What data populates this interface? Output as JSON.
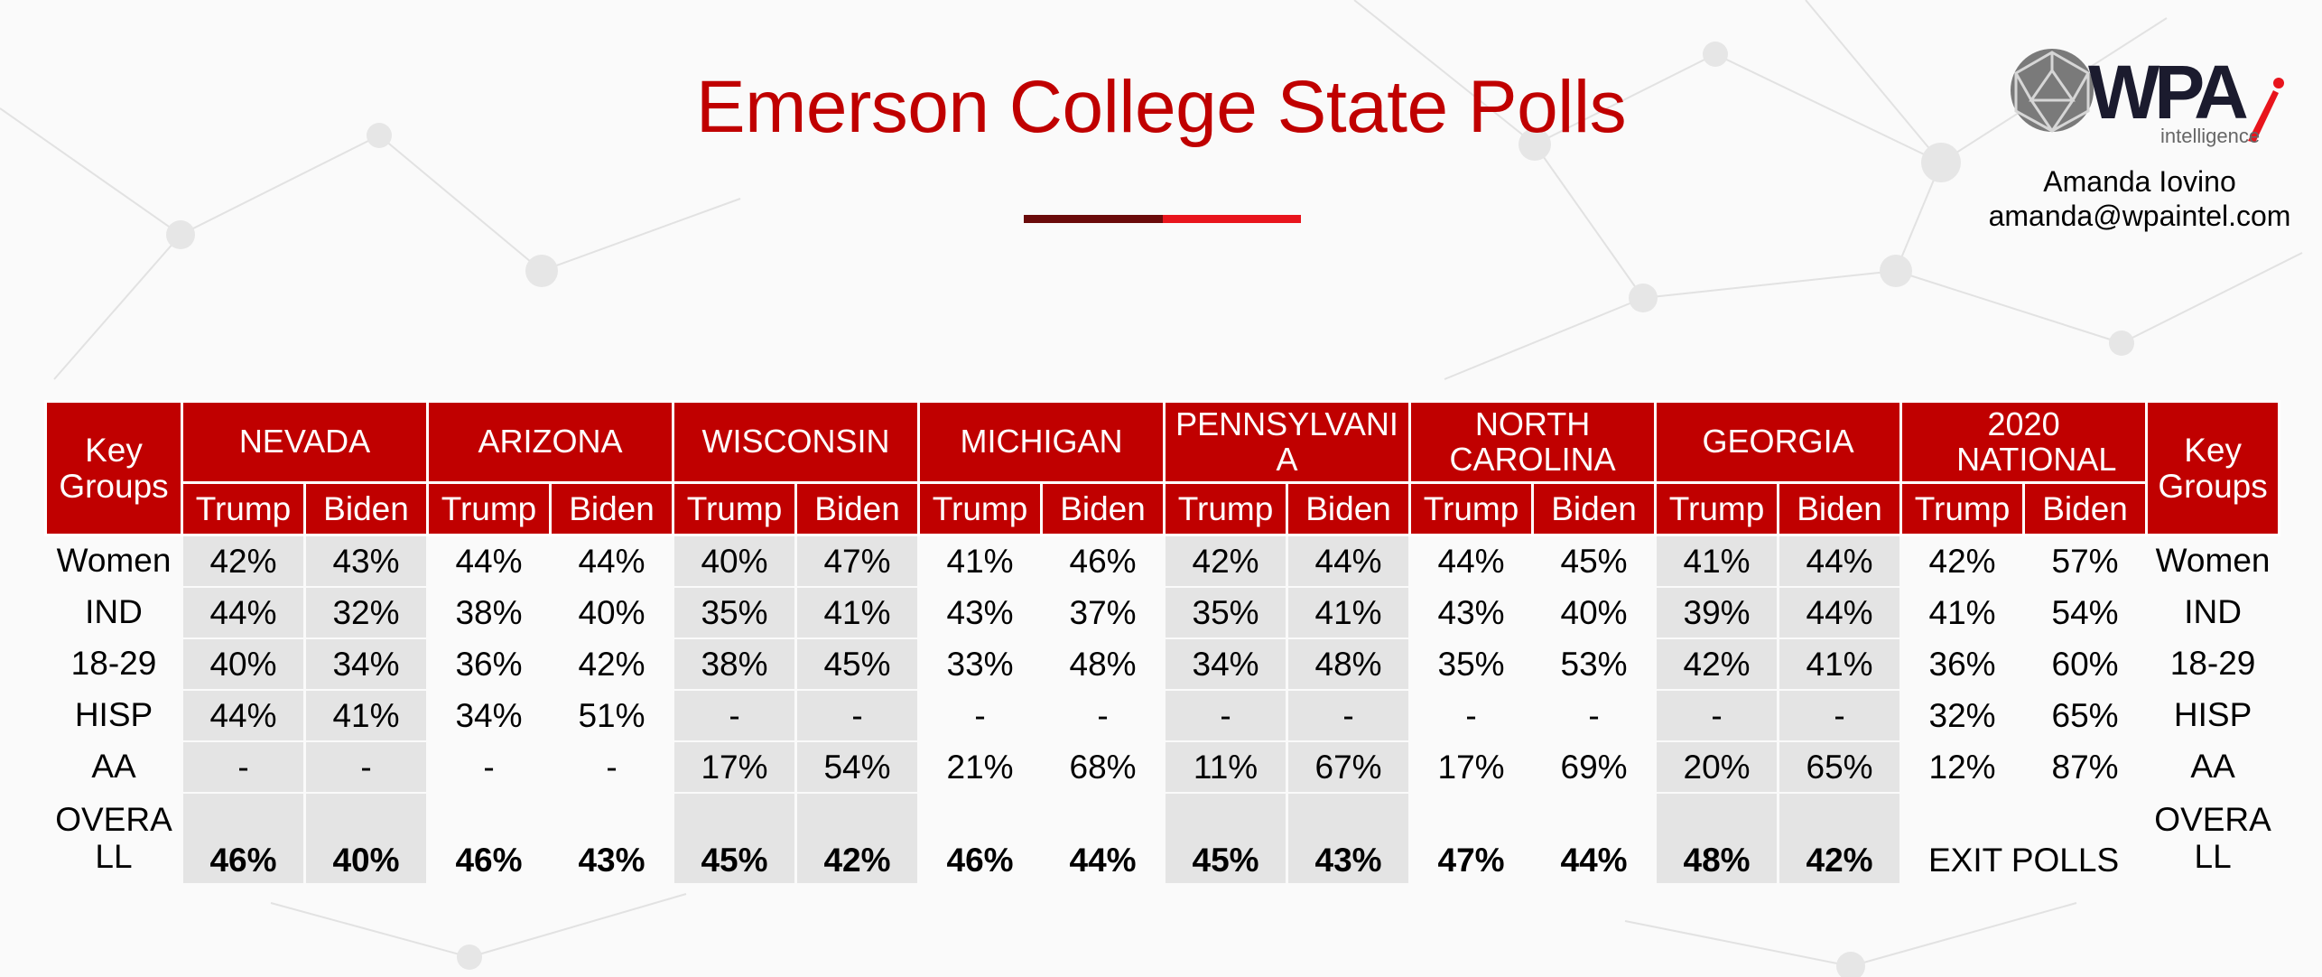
{
  "title": "Emerson College State Polls",
  "logo": {
    "brand": "WPA",
    "sub": "intelligence",
    "icon": "geodesic-sphere-icon"
  },
  "contact": {
    "name": "Amanda Iovino",
    "email": "amanda@wpaintel.com"
  },
  "colors": {
    "accent": "#c00000",
    "underline_dark": "#6a0a0a",
    "underline_red": "#e8141c",
    "shade": "#e4e4e4"
  },
  "table": {
    "key_groups_label": "Key Groups",
    "states": [
      "NEVADA",
      "ARIZONA",
      "WISCONSIN",
      "MICHIGAN",
      "PENNSYLVANIA",
      "NORTH CAROLINA",
      "GEORGIA",
      "2020 NATIONAL"
    ],
    "candidates": [
      "Trump",
      "Biden"
    ],
    "rows": [
      {
        "group": "Women",
        "values": [
          "42%",
          "43%",
          "44%",
          "44%",
          "40%",
          "47%",
          "41%",
          "46%",
          "42%",
          "44%",
          "44%",
          "45%",
          "41%",
          "44%",
          "42%",
          "57%"
        ]
      },
      {
        "group": "IND",
        "values": [
          "44%",
          "32%",
          "38%",
          "40%",
          "35%",
          "41%",
          "43%",
          "37%",
          "35%",
          "41%",
          "43%",
          "40%",
          "39%",
          "44%",
          "41%",
          "54%"
        ]
      },
      {
        "group": "18-29",
        "values": [
          "40%",
          "34%",
          "36%",
          "42%",
          "38%",
          "45%",
          "33%",
          "48%",
          "34%",
          "48%",
          "35%",
          "53%",
          "42%",
          "41%",
          "36%",
          "60%"
        ]
      },
      {
        "group": "HISP",
        "values": [
          "44%",
          "41%",
          "34%",
          "51%",
          "-",
          "-",
          "-",
          "-",
          "-",
          "-",
          "-",
          "-",
          "-",
          "-",
          "32%",
          "65%"
        ]
      },
      {
        "group": "AA",
        "values": [
          "-",
          "-",
          "-",
          "-",
          "17%",
          "54%",
          "21%",
          "68%",
          "11%",
          "67%",
          "17%",
          "69%",
          "20%",
          "65%",
          "12%",
          "87%"
        ]
      }
    ],
    "overall": {
      "group": "OVERALL",
      "values": [
        "46%",
        "40%",
        "46%",
        "43%",
        "45%",
        "42%",
        "46%",
        "44%",
        "45%",
        "43%",
        "47%",
        "44%",
        "48%",
        "42%"
      ],
      "national_note": "EXIT POLLS"
    }
  }
}
